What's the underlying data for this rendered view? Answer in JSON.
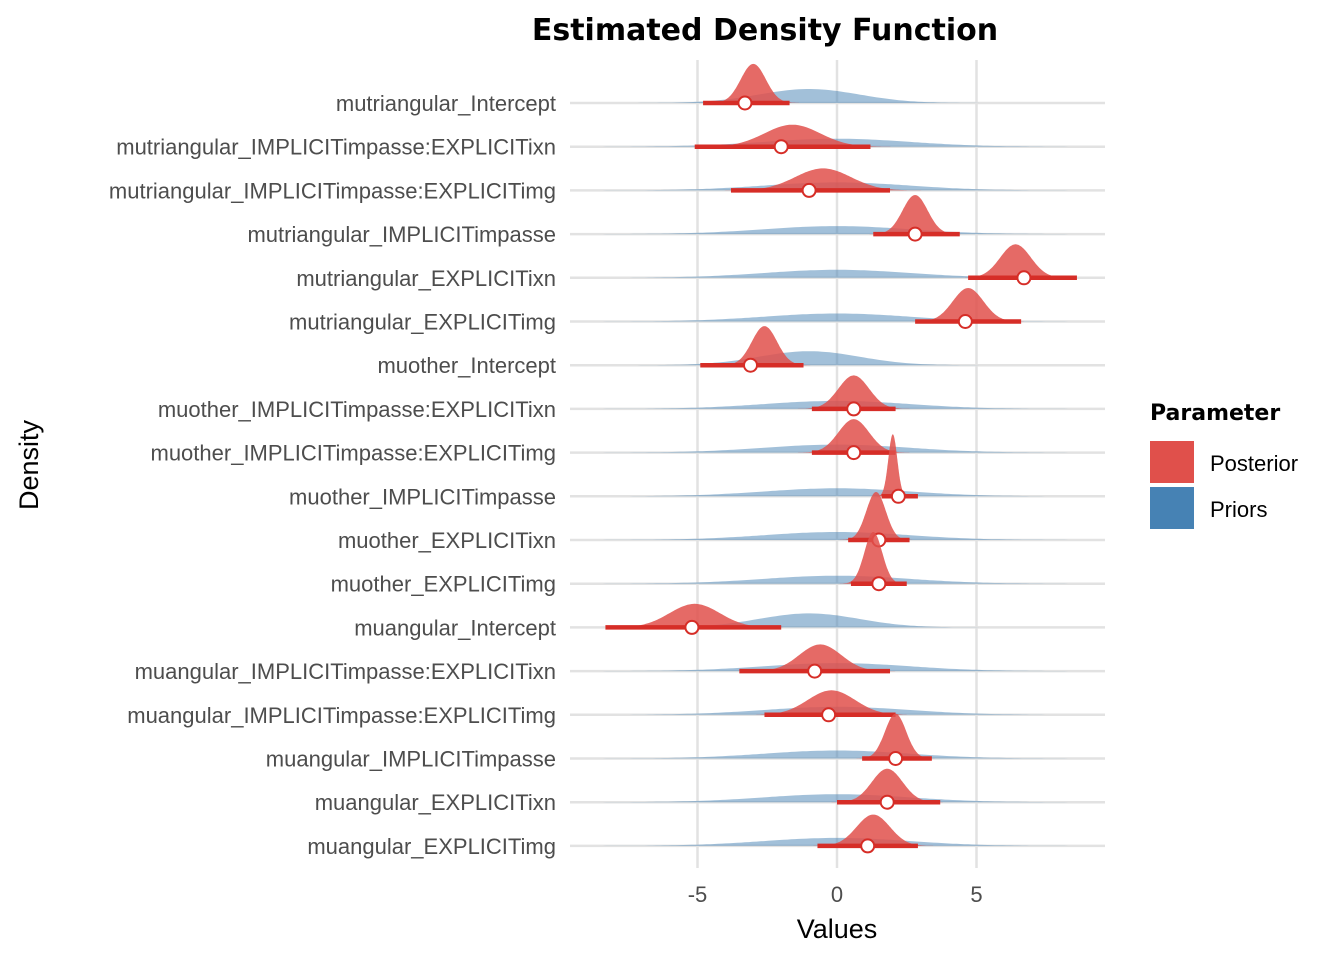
{
  "chart_data": {
    "type": "ridgeline",
    "title": "Estimated Density Function",
    "xlabel": "Values",
    "ylabel": "Density",
    "xlim": [
      -9.5,
      9.8
    ],
    "xticks": [
      -5,
      0,
      5
    ],
    "grid": true,
    "legend": {
      "title": "Parameter",
      "placement": "right",
      "entries": [
        {
          "name": "Posterior",
          "color": "#e0504b"
        },
        {
          "name": "Priors",
          "color": "#4682b4"
        }
      ]
    },
    "colors": {
      "posterior": "#e0504b",
      "posterior_interval": "#d62d27",
      "priors": "#4682b4"
    },
    "rows": [
      {
        "label": "mutriangular_Intercept",
        "prior_mean": -1.0,
        "prior_sd": 1.8,
        "post_mode": -3.0,
        "post_sd": 0.45,
        "point": -3.3,
        "ci": [
          -4.8,
          -1.7
        ]
      },
      {
        "label": "mutriangular_IMPLICITimpasse:EXPLICITixn",
        "prior_mean": 0,
        "prior_sd": 2.6,
        "post_mode": -1.6,
        "post_sd": 1.0,
        "point": -2.0,
        "ci": [
          -5.1,
          1.2
        ]
      },
      {
        "label": "mutriangular_IMPLICITimpasse:EXPLICITimg",
        "prior_mean": 0,
        "prior_sd": 2.6,
        "post_mode": -0.5,
        "post_sd": 1.0,
        "point": -1.0,
        "ci": [
          -3.8,
          1.9
        ]
      },
      {
        "label": "mutriangular_IMPLICITimpasse",
        "prior_mean": 0,
        "prior_sd": 2.6,
        "post_mode": 2.8,
        "post_sd": 0.45,
        "point": 2.8,
        "ci": [
          1.3,
          4.4
        ]
      },
      {
        "label": "mutriangular_EXPLICITixn",
        "prior_mean": 0,
        "prior_sd": 2.6,
        "post_mode": 6.4,
        "post_sd": 0.55,
        "point": 6.7,
        "ci": [
          4.7,
          8.6
        ]
      },
      {
        "label": "mutriangular_EXPLICITimg",
        "prior_mean": 0,
        "prior_sd": 2.6,
        "post_mode": 4.7,
        "post_sd": 0.55,
        "point": 4.6,
        "ci": [
          2.8,
          6.6
        ]
      },
      {
        "label": "muother_Intercept",
        "prior_mean": -1.0,
        "prior_sd": 1.8,
        "post_mode": -2.6,
        "post_sd": 0.45,
        "point": -3.1,
        "ci": [
          -4.9,
          -1.2
        ]
      },
      {
        "label": "muother_IMPLICITimpasse:EXPLICITixn",
        "prior_mean": 0,
        "prior_sd": 2.6,
        "post_mode": 0.6,
        "post_sd": 0.55,
        "point": 0.6,
        "ci": [
          -0.9,
          2.1
        ]
      },
      {
        "label": "muother_IMPLICITimpasse:EXPLICITimg",
        "prior_mean": 0,
        "prior_sd": 2.6,
        "post_mode": 0.6,
        "post_sd": 0.55,
        "point": 0.6,
        "ci": [
          -0.9,
          2.1
        ]
      },
      {
        "label": "muother_IMPLICITimpasse",
        "prior_mean": 0,
        "prior_sd": 2.6,
        "post_mode": 2.0,
        "post_sd": 0.16,
        "point": 2.2,
        "ci": [
          1.6,
          2.9
        ]
      },
      {
        "label": "muother_EXPLICITixn",
        "prior_mean": 0,
        "prior_sd": 2.6,
        "post_mode": 1.4,
        "post_sd": 0.35,
        "point": 1.5,
        "ci": [
          0.4,
          2.6
        ]
      },
      {
        "label": "muother_EXPLICITimg",
        "prior_mean": 0,
        "prior_sd": 2.6,
        "post_mode": 1.3,
        "post_sd": 0.32,
        "point": 1.5,
        "ci": [
          0.5,
          2.5
        ]
      },
      {
        "label": "muangular_Intercept",
        "prior_mean": -1.0,
        "prior_sd": 1.8,
        "post_mode": -5.1,
        "post_sd": 0.9,
        "point": -5.2,
        "ci": [
          -8.3,
          -2.0
        ]
      },
      {
        "label": "muangular_IMPLICITimpasse:EXPLICITixn",
        "prior_mean": 0,
        "prior_sd": 2.6,
        "post_mode": -0.6,
        "post_sd": 0.75,
        "point": -0.8,
        "ci": [
          -3.5,
          1.9
        ]
      },
      {
        "label": "muangular_IMPLICITimpasse:EXPLICITimg",
        "prior_mean": 0,
        "prior_sd": 2.6,
        "post_mode": -0.2,
        "post_sd": 0.85,
        "point": -0.3,
        "ci": [
          -2.6,
          2.1
        ]
      },
      {
        "label": "muangular_IMPLICITimpasse",
        "prior_mean": 0,
        "prior_sd": 2.6,
        "post_mode": 2.1,
        "post_sd": 0.38,
        "point": 2.1,
        "ci": [
          0.9,
          3.4
        ]
      },
      {
        "label": "muangular_EXPLICITixn",
        "prior_mean": 0,
        "prior_sd": 2.6,
        "post_mode": 1.8,
        "post_sd": 0.55,
        "point": 1.8,
        "ci": [
          0.0,
          3.7
        ]
      },
      {
        "label": "muangular_EXPLICITimg",
        "prior_mean": 0,
        "prior_sd": 2.6,
        "post_mode": 1.3,
        "post_sd": 0.6,
        "point": 1.1,
        "ci": [
          -0.7,
          2.9
        ]
      }
    ]
  }
}
